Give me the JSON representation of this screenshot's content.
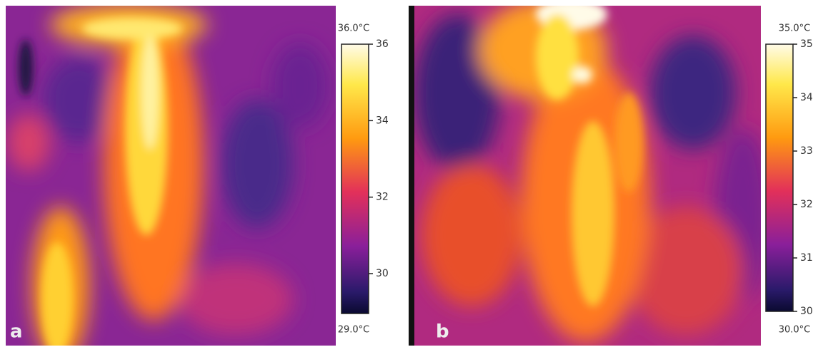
{
  "panels": [
    {
      "label": "a",
      "colorbar": {
        "max_label": "36.0°C",
        "min_label": "29.0°C",
        "ticks": [
          "36",
          "34",
          "32",
          "30"
        ]
      }
    },
    {
      "label": "b",
      "colorbar": {
        "max_label": "35.0°C",
        "min_label": "30.0°C",
        "ticks": [
          "35",
          "34",
          "33",
          "32",
          "31",
          "30"
        ]
      }
    }
  ]
}
